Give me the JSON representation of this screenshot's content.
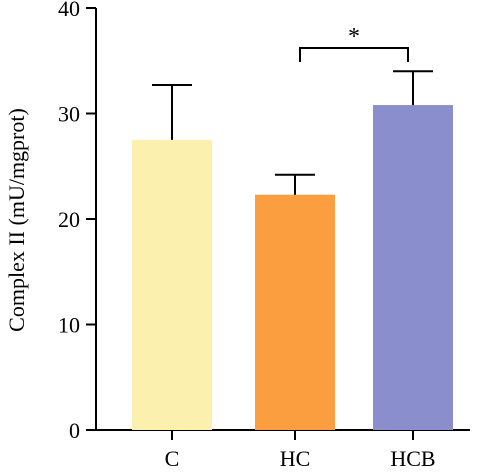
{
  "chart_data": {
    "type": "bar",
    "title": "",
    "xlabel": "",
    "ylabel": "Complex II (mU/mgprot)",
    "ylim": [
      0,
      40
    ],
    "yticks": [
      0,
      10,
      20,
      30,
      40
    ],
    "grid": false,
    "categories": [
      "C",
      "HC",
      "HCB"
    ],
    "values": [
      27.5,
      22.3,
      30.8
    ],
    "error_upper": [
      5.2,
      1.9,
      3.2
    ],
    "colors": [
      "#FCF0AE",
      "#FA9E40",
      "#8A8ECC"
    ],
    "significance": [
      {
        "from": "HC",
        "to": "HCB",
        "label": "*"
      }
    ]
  }
}
